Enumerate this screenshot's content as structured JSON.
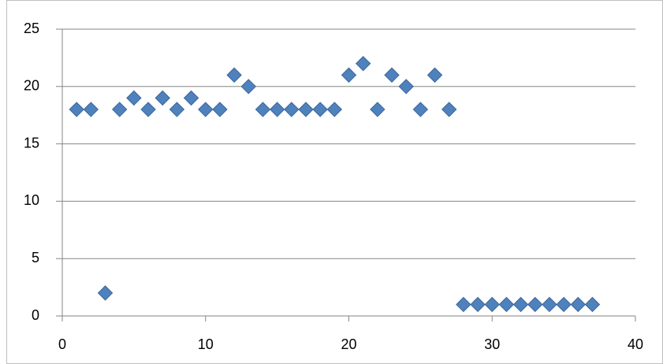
{
  "chart_data": {
    "type": "scatter",
    "x": [
      1,
      2,
      3,
      4,
      5,
      6,
      7,
      8,
      9,
      10,
      11,
      12,
      13,
      14,
      15,
      16,
      17,
      18,
      19,
      20,
      21,
      22,
      23,
      24,
      25,
      26,
      27,
      28,
      29,
      30,
      31,
      32,
      33,
      34,
      35,
      36,
      37
    ],
    "values": [
      18,
      18,
      2,
      18,
      19,
      18,
      19,
      18,
      19,
      18,
      18,
      21,
      20,
      18,
      18,
      18,
      18,
      18,
      18,
      21,
      22,
      18,
      21,
      20,
      18,
      21,
      18,
      1,
      1,
      1,
      1,
      1,
      1,
      1,
      1,
      1,
      1
    ],
    "color": "#4f81bd",
    "xlim": [
      0,
      40
    ],
    "xticks": [
      0,
      10,
      20,
      30,
      40
    ],
    "ylim": [
      0,
      25
    ],
    "yticks": [
      0,
      5,
      10,
      15,
      20,
      25
    ],
    "grid": true
  }
}
